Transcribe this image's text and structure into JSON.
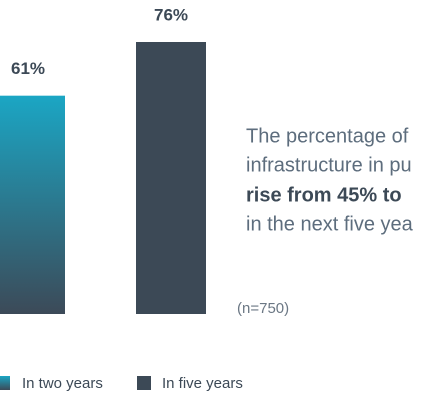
{
  "chart_data": {
    "type": "bar",
    "categories": [
      null
    ],
    "series": [
      {
        "name": "In two years",
        "color": "#1ba6c4",
        "values": [
          61
        ],
        "value_labels": [
          "61%"
        ]
      },
      {
        "name": "In five years",
        "color": "#3c4956",
        "values": [
          76
        ],
        "value_labels": [
          "76%"
        ]
      }
    ],
    "annotation_lines": [
      "The percentage of",
      "infrastructure in pu",
      "rise from 45% to",
      "in the next five yea"
    ],
    "note": "(n=750)"
  }
}
